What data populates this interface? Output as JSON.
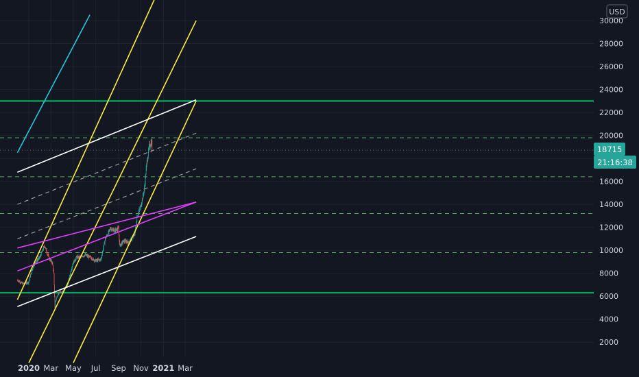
{
  "currency": "USD",
  "chart_data": {
    "type": "candlestick",
    "y_axis": {
      "ticks": [
        2000,
        4000,
        6000,
        8000,
        10000,
        12000,
        14000,
        16000,
        18000,
        20000,
        22000,
        24000,
        26000,
        28000,
        30000
      ],
      "position": "right"
    },
    "x_axis": {
      "ticks": [
        {
          "label": "2020",
          "bold": true
        },
        {
          "label": "Mar",
          "bold": false
        },
        {
          "label": "May",
          "bold": false
        },
        {
          "label": "Jul",
          "bold": false
        },
        {
          "label": "Sep",
          "bold": false
        },
        {
          "label": "Nov",
          "bold": false
        },
        {
          "label": "2021",
          "bold": true
        },
        {
          "label": "Mar",
          "bold": false
        }
      ]
    },
    "current_price": {
      "value": "18715",
      "countdown": "21:16:38"
    },
    "candle_anchors": [
      [
        "2019-12-01",
        7400
      ],
      [
        "2019-12-15",
        7100
      ],
      [
        "2019-12-31",
        7200
      ],
      [
        "2020-01-15",
        8800
      ],
      [
        "2020-01-31",
        9400
      ],
      [
        "2020-02-13",
        10400
      ],
      [
        "2020-02-25",
        9300
      ],
      [
        "2020-03-05",
        8900
      ],
      [
        "2020-03-09",
        7900
      ],
      [
        "2020-03-12",
        5000
      ],
      [
        "2020-03-13",
        5500
      ],
      [
        "2020-03-20",
        6200
      ],
      [
        "2020-03-31",
        6400
      ],
      [
        "2020-04-15",
        6900
      ],
      [
        "2020-04-29",
        8800
      ],
      [
        "2020-05-10",
        9400
      ],
      [
        "2020-05-20",
        9400
      ],
      [
        "2020-06-01",
        9600
      ],
      [
        "2020-06-15",
        9400
      ],
      [
        "2020-06-30",
        9100
      ],
      [
        "2020-07-15",
        9200
      ],
      [
        "2020-07-27",
        11000
      ],
      [
        "2020-08-10",
        11900
      ],
      [
        "2020-08-20",
        11700
      ],
      [
        "2020-09-01",
        11900
      ],
      [
        "2020-09-04",
        10400
      ],
      [
        "2020-09-15",
        10800
      ],
      [
        "2020-09-30",
        10700
      ],
      [
        "2020-10-15",
        11400
      ],
      [
        "2020-10-21",
        12900
      ],
      [
        "2020-10-31",
        13800
      ],
      [
        "2020-11-10",
        15300
      ],
      [
        "2020-11-17",
        17700
      ],
      [
        "2020-11-24",
        19100
      ],
      [
        "2020-11-30",
        19400
      ],
      [
        "2020-12-01",
        18715
      ]
    ],
    "horizontal_levels": [
      {
        "price": 23000,
        "color": "#00e676",
        "style": "solid"
      },
      {
        "price": 6300,
        "color": "#00e676",
        "style": "solid"
      },
      {
        "price": 19800,
        "color": "#4caf50",
        "style": "dashed"
      },
      {
        "price": 16400,
        "color": "#4caf50",
        "style": "dashed"
      },
      {
        "price": 13200,
        "color": "#4caf50",
        "style": "dashed"
      },
      {
        "price": 9800,
        "color": "#4caf50",
        "style": "dashed"
      },
      {
        "price": 18715,
        "color": "#5d606b",
        "style": "dotted"
      }
    ],
    "trend_lines": [
      {
        "color": "#26c6da",
        "style": "solid",
        "from": [
          "2019-12-01",
          18500
        ],
        "to": [
          "2020-06-15",
          30500
        ]
      },
      {
        "color": "#ffeb3b",
        "style": "solid",
        "from": [
          "2019-12-01",
          5700
        ],
        "to": [
          "2020-12-31",
          33500
        ]
      },
      {
        "color": "#ffeb3b",
        "style": "solid",
        "from": [
          "2020-01-01",
          200
        ],
        "to": [
          "2021-03-31",
          30000
        ]
      },
      {
        "color": "#ffeb3b",
        "style": "solid",
        "from": [
          "2020-05-01",
          200
        ],
        "to": [
          "2021-03-31",
          23000
        ]
      },
      {
        "color": "#ffffff",
        "style": "solid",
        "from": [
          "2019-12-01",
          16800
        ],
        "to": [
          "2021-03-31",
          23100
        ]
      },
      {
        "color": "#ffffff",
        "style": "solid",
        "from": [
          "2019-12-01",
          5100
        ],
        "to": [
          "2021-03-31",
          11200
        ]
      },
      {
        "color": "#9e9e9e",
        "style": "dashed",
        "from": [
          "2019-12-01",
          14000
        ],
        "to": [
          "2021-03-31",
          20200
        ]
      },
      {
        "color": "#9e9e9e",
        "style": "dashed",
        "from": [
          "2019-12-01",
          11000
        ],
        "to": [
          "2021-03-31",
          17100
        ]
      },
      {
        "color": "#e040fb",
        "style": "solid",
        "from": [
          "2019-12-01",
          10200
        ],
        "to": [
          "2021-03-31",
          14200
        ]
      },
      {
        "color": "#e040fb",
        "style": "solid",
        "from": [
          "2019-12-01",
          8200
        ],
        "to": [
          "2021-03-31",
          14200
        ]
      }
    ],
    "colors": {
      "background": "#131722",
      "grid": "#1e222d",
      "up": "#26a69a",
      "down": "#ef5350",
      "price_tag": "#26a69a"
    }
  }
}
